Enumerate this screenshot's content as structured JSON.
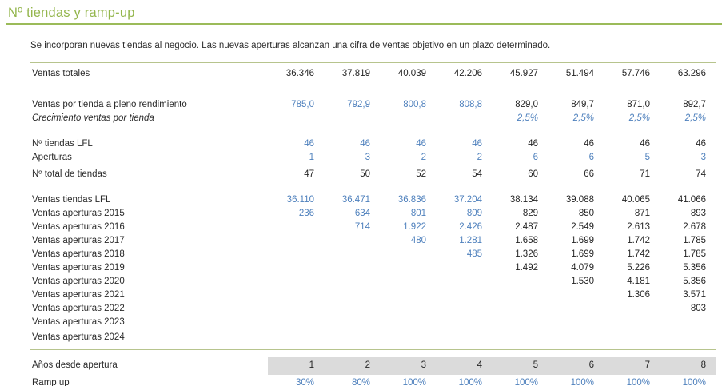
{
  "page": {
    "title": "Nº tiendas y ramp-up",
    "subtitle": "Se incorporan nuevas tiendas al negocio. Las nuevas aperturas alcanzan una cifra de ventas objetivo en un plazo determinado."
  },
  "colors": {
    "accent_green": "#94B64D",
    "rule_green": "#9BBB59",
    "table_rule_olive": "#b7c48d",
    "input_blue": "#4F81BD",
    "text_dark": "#262626",
    "band_gray": "#DBDBDB"
  },
  "table": {
    "num_columns": 8,
    "rows": [
      {
        "label": "Ventas totales",
        "tall": true,
        "top_rule": true,
        "bottom_rule": true,
        "values": [
          "36.346",
          "37.819",
          "40.039",
          "42.206",
          "45.927",
          "51.494",
          "57.746",
          "63.296"
        ],
        "colors": [
          "k",
          "k",
          "k",
          "k",
          "k",
          "k",
          "k",
          "k"
        ]
      },
      {
        "label": "Ventas por tienda a pleno rendimiento",
        "gap_before": "lg",
        "values": [
          "785,0",
          "792,9",
          "800,8",
          "808,8",
          "829,0",
          "849,7",
          "871,0",
          "892,7"
        ],
        "colors": [
          "b",
          "b",
          "b",
          "b",
          "k",
          "k",
          "k",
          "k"
        ]
      },
      {
        "label": "Crecimiento ventas por tienda",
        "italic": true,
        "indent": 2,
        "values": [
          "",
          "",
          "",
          "",
          "2,5%",
          "2,5%",
          "2,5%",
          "2,5%"
        ],
        "colors": [
          "b",
          "b",
          "b",
          "b",
          "b",
          "b",
          "b",
          "b"
        ]
      },
      {
        "label": "Nº tiendas LFL",
        "gap_before": "lg",
        "values": [
          "46",
          "46",
          "46",
          "46",
          "46",
          "46",
          "46",
          "46"
        ],
        "colors": [
          "b",
          "b",
          "b",
          "b",
          "k",
          "k",
          "k",
          "k"
        ]
      },
      {
        "label": "Aperturas",
        "indent": 1,
        "values": [
          "1",
          "3",
          "2",
          "2",
          "6",
          "6",
          "5",
          "3"
        ],
        "colors": [
          "b",
          "b",
          "b",
          "b",
          "b",
          "b",
          "b",
          "b"
        ]
      },
      {
        "label": "Nº total de tiendas",
        "top_rule": true,
        "values": [
          "47",
          "50",
          "52",
          "54",
          "60",
          "66",
          "71",
          "74"
        ],
        "colors": [
          "k",
          "k",
          "k",
          "k",
          "k",
          "k",
          "k",
          "k"
        ]
      },
      {
        "label": "Ventas tiendas LFL",
        "gap_before": "lg",
        "values": [
          "36.110",
          "36.471",
          "36.836",
          "37.204",
          "38.134",
          "39.088",
          "40.065",
          "41.066"
        ],
        "colors": [
          "b",
          "b",
          "b",
          "b",
          "k",
          "k",
          "k",
          "k"
        ]
      },
      {
        "label": "Ventas aperturas 2015",
        "values": [
          "236",
          "634",
          "801",
          "809",
          "829",
          "850",
          "871",
          "893"
        ],
        "colors": [
          "b",
          "b",
          "b",
          "b",
          "k",
          "k",
          "k",
          "k"
        ]
      },
      {
        "label": "Ventas aperturas 2016",
        "values": [
          "",
          "714",
          "1.922",
          "2.426",
          "2.487",
          "2.549",
          "2.613",
          "2.678"
        ],
        "colors": [
          "b",
          "b",
          "b",
          "b",
          "k",
          "k",
          "k",
          "k"
        ]
      },
      {
        "label": "Ventas aperturas 2017",
        "values": [
          "",
          "",
          "480",
          "1.281",
          "1.658",
          "1.699",
          "1.742",
          "1.785"
        ],
        "colors": [
          "b",
          "b",
          "b",
          "b",
          "k",
          "k",
          "k",
          "k"
        ]
      },
      {
        "label": "Ventas aperturas 2018",
        "values": [
          "",
          "",
          "",
          "485",
          "1.326",
          "1.699",
          "1.742",
          "1.785"
        ],
        "colors": [
          "b",
          "b",
          "b",
          "b",
          "k",
          "k",
          "k",
          "k"
        ]
      },
      {
        "label": "Ventas aperturas 2019",
        "values": [
          "",
          "",
          "",
          "",
          "1.492",
          "4.079",
          "5.226",
          "5.356"
        ],
        "colors": [
          "k",
          "k",
          "k",
          "k",
          "k",
          "k",
          "k",
          "k"
        ]
      },
      {
        "label": "Ventas aperturas 2020",
        "values": [
          "",
          "",
          "",
          "",
          "",
          "1.530",
          "4.181",
          "5.356"
        ],
        "colors": [
          "k",
          "k",
          "k",
          "k",
          "k",
          "k",
          "k",
          "k"
        ]
      },
      {
        "label": "Ventas aperturas 2021",
        "values": [
          "",
          "",
          "",
          "",
          "",
          "",
          "1.306",
          "3.571"
        ],
        "colors": [
          "k",
          "k",
          "k",
          "k",
          "k",
          "k",
          "k",
          "k"
        ]
      },
      {
        "label": "Ventas aperturas 2022",
        "values": [
          "",
          "",
          "",
          "",
          "",
          "",
          "",
          "803"
        ],
        "colors": [
          "k",
          "k",
          "k",
          "k",
          "k",
          "k",
          "k",
          "k"
        ]
      },
      {
        "label": "Ventas aperturas 2023",
        "values": [
          "",
          "",
          "",
          "",
          "",
          "",
          "",
          ""
        ],
        "colors": [
          "k",
          "k",
          "k",
          "k",
          "k",
          "k",
          "k",
          "k"
        ]
      },
      {
        "label": "Ventas aperturas 2024",
        "bottom_rule": true,
        "tall": true,
        "values": [
          "",
          "",
          "",
          "",
          "",
          "",
          "",
          ""
        ],
        "colors": [
          "k",
          "k",
          "k",
          "k",
          "k",
          "k",
          "k",
          "k"
        ]
      },
      {
        "label": "Años desde apertura",
        "gap_before": "sm",
        "band": true,
        "values": [
          "1",
          "2",
          "3",
          "4",
          "5",
          "6",
          "7",
          "8"
        ],
        "colors": [
          "k",
          "k",
          "k",
          "k",
          "k",
          "k",
          "k",
          "k"
        ]
      },
      {
        "label": "Ramp up",
        "last": true,
        "values": [
          "30%",
          "80%",
          "100%",
          "100%",
          "100%",
          "100%",
          "100%",
          "100%"
        ],
        "colors": [
          "b",
          "b",
          "b",
          "b",
          "b",
          "b",
          "b",
          "b"
        ]
      }
    ]
  }
}
